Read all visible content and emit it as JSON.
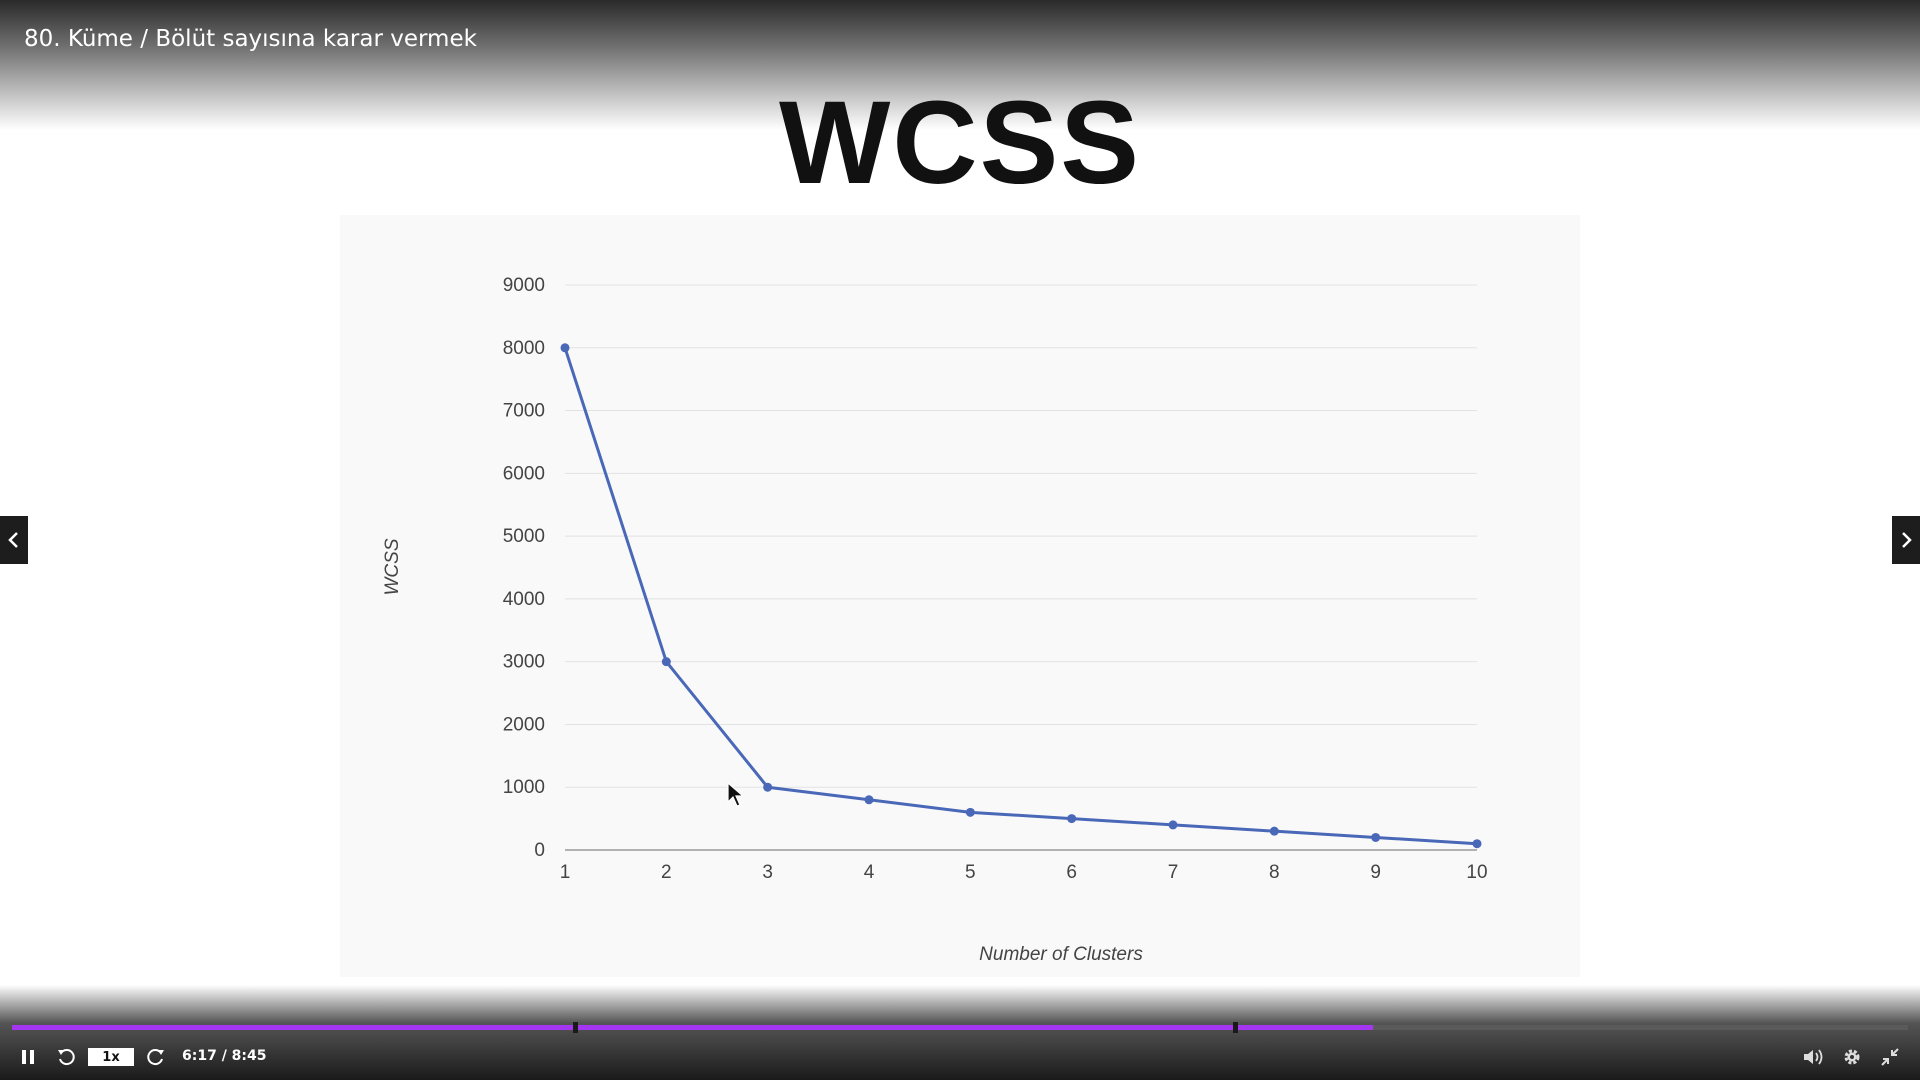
{
  "player": {
    "title": "80. Küme / Bölüt sayısına karar vermek",
    "speed": "1x",
    "time": "6:17 / 8:45",
    "progress_fraction": 0.718,
    "chapter_markers": [
      0.297,
      0.645
    ],
    "accent_color": "#a435f0",
    "icons": {
      "play_pause": "pause-icon",
      "rewind": "rewind-icon",
      "forward": "forward-icon",
      "volume": "volume-icon",
      "settings": "gear-icon",
      "fullscreen": "exit-fullscreen-icon",
      "prev": "chevron-left-icon",
      "next": "chevron-right-icon"
    }
  },
  "slide": {
    "heading": "WCSS"
  },
  "chart_data": {
    "type": "line",
    "title": "",
    "xlabel": "Number of Clusters",
    "ylabel": "WCSS",
    "x": [
      1,
      2,
      3,
      4,
      5,
      6,
      7,
      8,
      9,
      10
    ],
    "series": [
      {
        "values": [
          8000,
          3000,
          1000,
          800,
          600,
          500,
          400,
          300,
          200,
          100
        ],
        "color": "#4a68b8"
      }
    ],
    "ylim": [
      0,
      9000
    ],
    "yticks": [
      0,
      1000,
      2000,
      3000,
      4000,
      5000,
      6000,
      7000,
      8000,
      9000
    ],
    "grid": true
  }
}
